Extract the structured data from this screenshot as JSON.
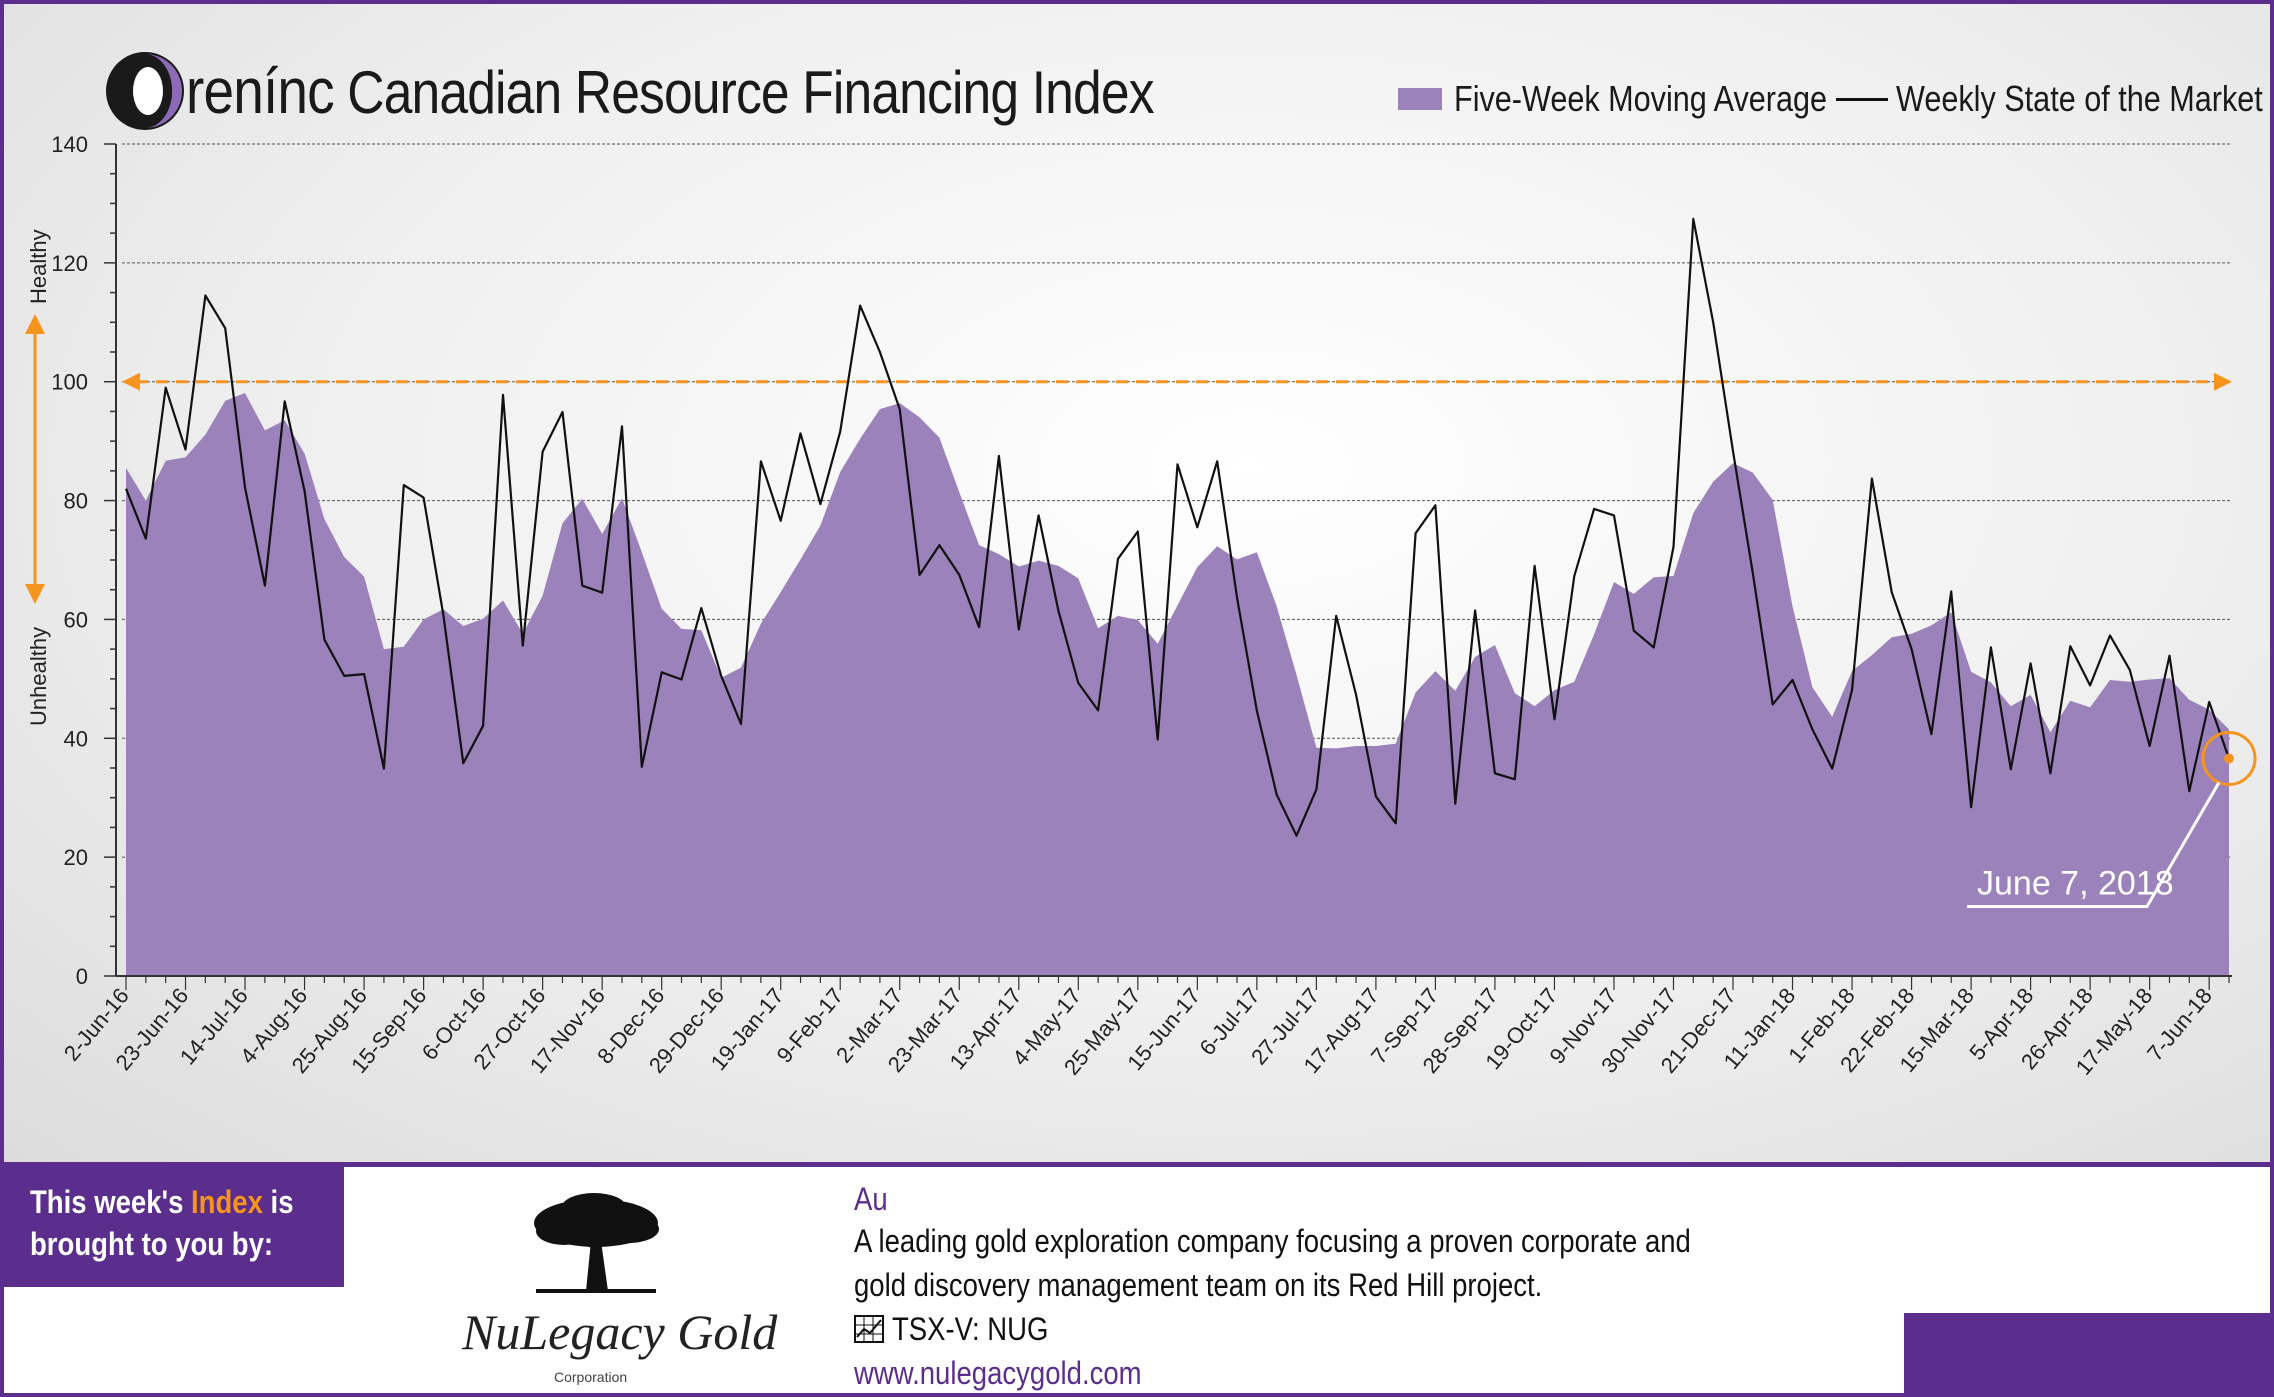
{
  "title": {
    "brand": "renínc",
    "text": "Canadian Resource Financing Index"
  },
  "legend": {
    "area_label": "Five-Week Moving Average",
    "line_label": "Weekly State of the Market"
  },
  "side_labels": {
    "top": "Healthy",
    "bottom": "Unhealthy"
  },
  "callout": "June 7, 2018",
  "colors": {
    "area": "#9b82bb",
    "line": "#111111",
    "threshold": "#f7941d",
    "brand": "#5b2d8c"
  },
  "chart_data": {
    "type": "area",
    "ylim": [
      0,
      140
    ],
    "yticks": [
      0,
      20,
      40,
      60,
      80,
      100,
      120,
      140
    ],
    "threshold": 100,
    "grid": true,
    "legend_position": "top-right",
    "x_tick_labels": [
      "2-Jun-16",
      "23-Jun-16",
      "14-Jul-16",
      "4-Aug-16",
      "25-Aug-16",
      "15-Sep-16",
      "6-Oct-16",
      "27-Oct-16",
      "17-Nov-16",
      "8-Dec-16",
      "29-Dec-16",
      "19-Jan-17",
      "9-Feb-17",
      "2-Mar-17",
      "23-Mar-17",
      "13-Apr-17",
      "4-May-17",
      "25-May-17",
      "15-Jun-17",
      "6-Jul-17",
      "27-Jul-17",
      "17-Aug-17",
      "7-Sep-17",
      "28-Sep-17",
      "19-Oct-17",
      "9-Nov-17",
      "30-Nov-17",
      "21-Dec-17",
      "11-Jan-18",
      "1-Feb-18",
      "22-Feb-18",
      "15-Mar-18",
      "5-Apr-18",
      "26-Apr-18",
      "17-May-18",
      "7-Jun-18"
    ],
    "series": [
      {
        "name": "Five-Week Moving Average",
        "type": "area",
        "values": [
          85.5,
          80,
          86.7,
          87.3,
          91.1,
          96.8,
          98.1,
          91.8,
          93.5,
          87.9,
          76.9,
          70.5,
          67.2,
          55,
          55.4,
          60,
          61.7,
          58.9,
          60.1,
          63.2,
          57.6,
          64,
          76.2,
          80.3,
          74.4,
          80.4,
          71.3,
          61.8,
          58.4,
          58.2,
          50.2,
          51.9,
          59.3,
          64.6,
          70.1,
          75.8,
          84.8,
          90.4,
          95.4,
          96.4,
          94,
          90.6,
          81.4,
          72.5,
          71,
          68.9,
          69.9,
          69,
          66.9,
          58.5,
          60.6,
          59.9,
          55.9,
          62.4,
          68.8,
          72.3,
          70.1,
          71.3,
          62.2,
          50.7,
          38.4,
          38.3,
          38.7,
          38.7,
          39.1,
          47.7,
          51.3,
          48,
          53.7,
          55.7,
          47.6,
          45.4,
          48.1,
          49.5,
          57.5,
          66.3,
          64.3,
          67.1,
          67.3,
          77.9,
          83.2,
          86.3,
          84.7,
          80.1,
          62.2,
          48.6,
          43.6,
          51.3,
          54,
          57,
          57.6,
          59,
          61.2,
          51.2,
          49.4,
          45.4,
          47.3,
          41,
          46.3,
          45.2,
          49.8,
          49.5,
          49.9,
          50.1,
          46.5,
          44.8,
          41.5
        ]
      },
      {
        "name": "Weekly State of the Market",
        "type": "line",
        "values": [
          82,
          73.6,
          99,
          88.6,
          114.5,
          109,
          82.2,
          65.7,
          96.7,
          81.6,
          56.6,
          50.5,
          50.8,
          34.9,
          82.6,
          80.5,
          60.7,
          35.8,
          42.1,
          97.8,
          55.6,
          88.2,
          94.9,
          65.7,
          64.5,
          92.5,
          35.2,
          51.1,
          49.9,
          61.9,
          50.5,
          42.4,
          86.6,
          76.6,
          91.3,
          79.4,
          91.6,
          112.8,
          105,
          95.4,
          67.5,
          72.5,
          67.5,
          58.7,
          87.5,
          58.3,
          77.5,
          61.4,
          49.3,
          44.7,
          70.2,
          74.8,
          39.8,
          86.1,
          75.5,
          86.6,
          63.7,
          44.6,
          30.5,
          23.6,
          31.4,
          60.6,
          47.3,
          30.2,
          25.7,
          74.5,
          79.2,
          29,
          61.5,
          34.1,
          33.1,
          69,
          43.2,
          67.3,
          78.6,
          77.5,
          58.1,
          55.3,
          72.2,
          127.4,
          110,
          88.3,
          67.8,
          45.7,
          49.8,
          41.5,
          34.9,
          48.1,
          83.7,
          64.6,
          55,
          40.7,
          64.7,
          28.4,
          55.3,
          34.8,
          52.6,
          34.1,
          55.5,
          48.9,
          57.3,
          51.5,
          38.7,
          53.9,
          31.1,
          46.1,
          36.6
        ]
      }
    ]
  },
  "footer": {
    "sponsor_line1_a": "This week's",
    "sponsor_line1_b": "Index",
    "sponsor_line1_c": "is",
    "sponsor_line2": "brought to you by:",
    "company_logo_text": "NuLegacy Gold",
    "company_logo_sub": "Corporation",
    "symbol": "Au",
    "description_line1": "A leading gold exploration company focusing a proven corporate and",
    "description_line2": "gold discovery management team on its Red Hill project.",
    "ticker": "TSX-V:  NUG",
    "url": "www.nulegacygold.com"
  }
}
